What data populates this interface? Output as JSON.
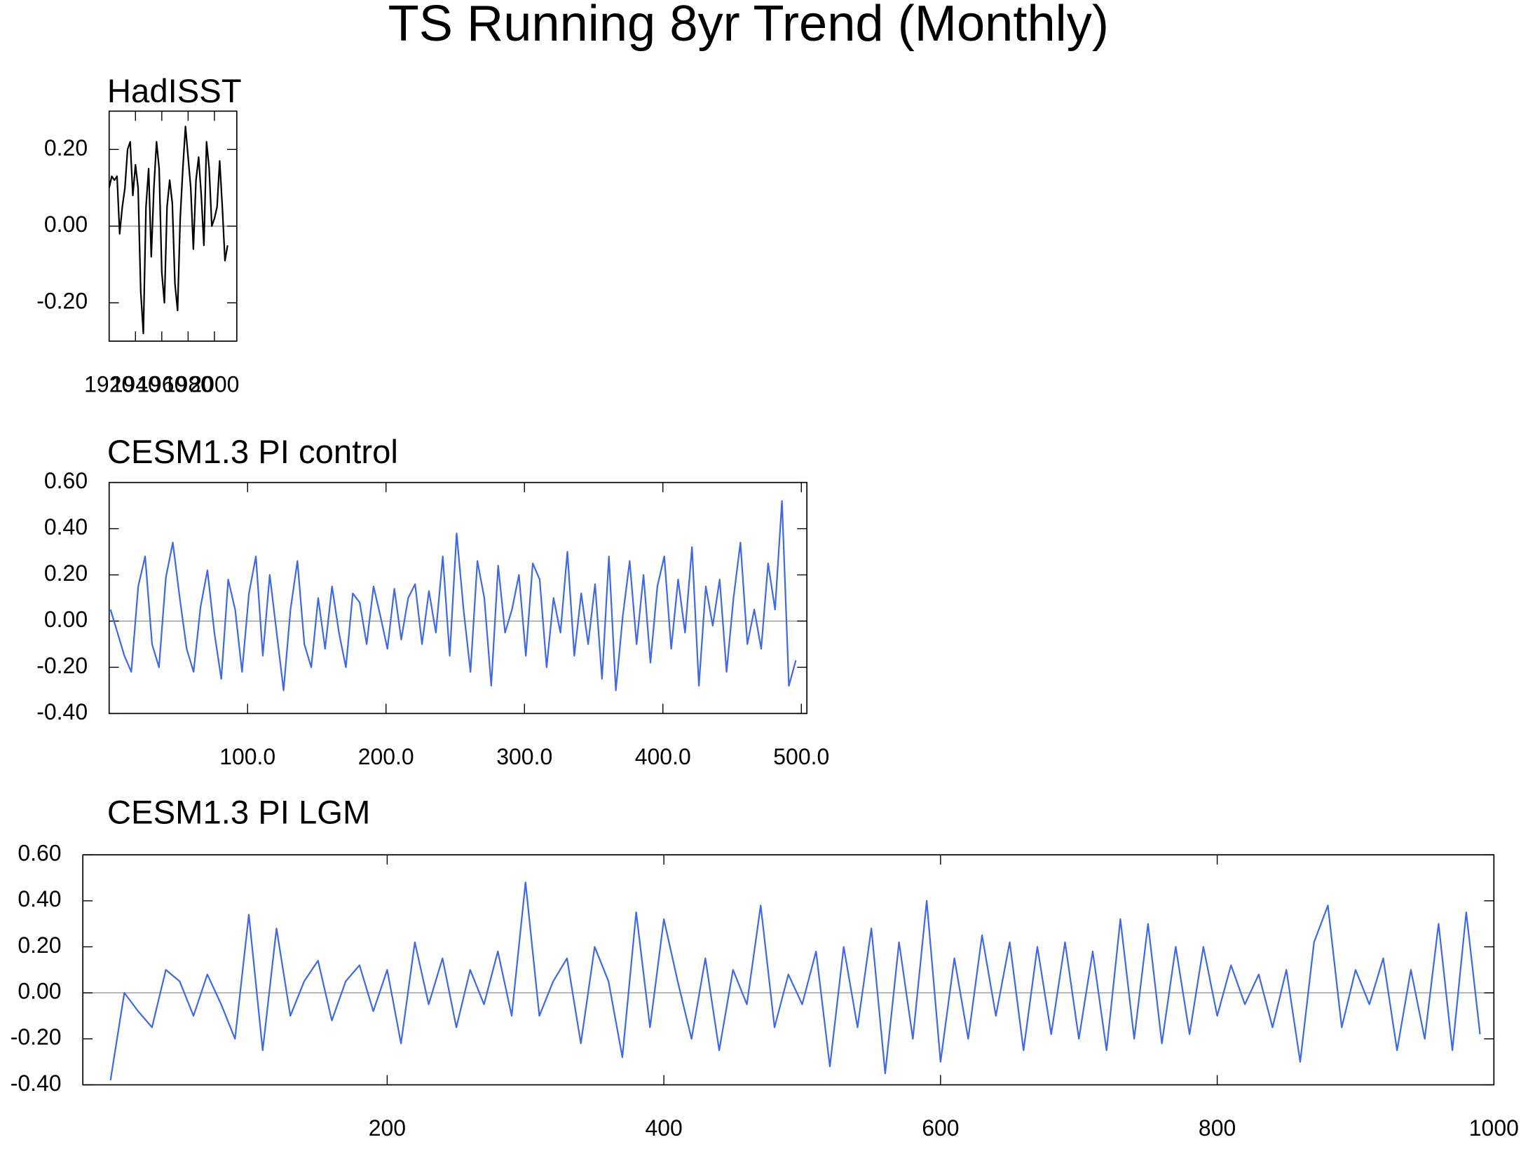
{
  "title": "TS Running 8yr Trend (Monthly)",
  "chart_data": [
    {
      "type": "line",
      "title": "HadISST",
      "color": "#000000",
      "x": [
        1920,
        1922,
        1924,
        1926,
        1928,
        1930,
        1932,
        1934,
        1936,
        1938,
        1940,
        1942,
        1944,
        1946,
        1948,
        1950,
        1952,
        1954,
        1956,
        1958,
        1960,
        1962,
        1964,
        1966,
        1968,
        1970,
        1972,
        1974,
        1976,
        1978,
        1980,
        1982,
        1984,
        1986,
        1988,
        1990,
        1992,
        1994,
        1996,
        1998,
        2000,
        2002,
        2004,
        2006,
        2008,
        2010
      ],
      "values": [
        0.1,
        0.13,
        0.12,
        0.13,
        -0.02,
        0.05,
        0.1,
        0.2,
        0.22,
        0.08,
        0.16,
        0.1,
        -0.17,
        -0.28,
        0.05,
        0.15,
        -0.08,
        0.1,
        0.22,
        0.15,
        -0.12,
        -0.2,
        0.05,
        0.12,
        0.06,
        -0.15,
        -0.22,
        0.02,
        0.15,
        0.26,
        0.18,
        0.1,
        -0.06,
        0.12,
        0.18,
        0.08,
        -0.05,
        0.22,
        0.15,
        0.0,
        0.02,
        0.05,
        0.17,
        0.05,
        -0.09,
        -0.05
      ],
      "xlim": [
        1920,
        2017
      ],
      "ylim": [
        -0.3,
        0.3
      ],
      "xticks": [
        1920,
        1940,
        1960,
        1980,
        2000
      ],
      "yticks": [
        {
          "value": -0.2,
          "label": "-0.20"
        },
        {
          "value": 0,
          "label": "0.00"
        },
        {
          "value": 0.2,
          "label": "0.20"
        }
      ],
      "reference_line": 0
    },
    {
      "type": "line",
      "title": "CESM1.3 PI control",
      "color": "#4169e1",
      "x": [
        1,
        6,
        11,
        16,
        21,
        26,
        31,
        36,
        41,
        46,
        51,
        56,
        61,
        66,
        71,
        76,
        81,
        86,
        91,
        96,
        101,
        106,
        111,
        116,
        121,
        126,
        131,
        136,
        141,
        146,
        151,
        156,
        161,
        166,
        171,
        176,
        181,
        186,
        191,
        196,
        201,
        206,
        211,
        216,
        221,
        226,
        231,
        236,
        241,
        246,
        251,
        256,
        261,
        266,
        271,
        276,
        281,
        286,
        291,
        296,
        301,
        306,
        311,
        316,
        321,
        326,
        331,
        336,
        341,
        346,
        351,
        356,
        361,
        366,
        371,
        376,
        381,
        386,
        391,
        396,
        401,
        406,
        411,
        416,
        421,
        426,
        431,
        436,
        441,
        446,
        451,
        456,
        461,
        466,
        471,
        476,
        481,
        486,
        491,
        496
      ],
      "values": [
        0.05,
        -0.05,
        -0.15,
        -0.22,
        0.15,
        0.28,
        -0.1,
        -0.2,
        0.19,
        0.34,
        0.1,
        -0.12,
        -0.22,
        0.06,
        0.22,
        -0.05,
        -0.25,
        0.18,
        0.05,
        -0.22,
        0.12,
        0.28,
        -0.15,
        0.2,
        -0.05,
        -0.3,
        0.05,
        0.26,
        -0.1,
        -0.2,
        0.1,
        -0.12,
        0.15,
        -0.05,
        -0.2,
        0.12,
        0.08,
        -0.1,
        0.15,
        0.02,
        -0.12,
        0.14,
        -0.08,
        0.1,
        0.16,
        -0.1,
        0.13,
        -0.05,
        0.28,
        -0.15,
        0.38,
        0.05,
        -0.22,
        0.26,
        0.1,
        -0.28,
        0.24,
        -0.05,
        0.05,
        0.2,
        -0.15,
        0.25,
        0.18,
        -0.2,
        0.1,
        -0.05,
        0.3,
        -0.15,
        0.12,
        -0.1,
        0.16,
        -0.25,
        0.28,
        -0.3,
        0.02,
        0.26,
        -0.1,
        0.2,
        -0.18,
        0.15,
        0.28,
        -0.12,
        0.18,
        -0.05,
        0.32,
        -0.28,
        0.15,
        -0.02,
        0.18,
        -0.22,
        0.1,
        0.34,
        -0.1,
        0.05,
        -0.12,
        0.25,
        0.05,
        0.52,
        -0.28,
        -0.17
      ],
      "xlim": [
        0,
        504
      ],
      "ylim": [
        -0.4,
        0.6
      ],
      "xticks": [
        {
          "value": 100,
          "label": "100.0"
        },
        {
          "value": 200,
          "label": "200.0"
        },
        {
          "value": 300,
          "label": "300.0"
        },
        {
          "value": 400,
          "label": "400.0"
        },
        {
          "value": 500,
          "label": "500.0"
        }
      ],
      "yticks": [
        {
          "value": -0.4,
          "label": "-0.40"
        },
        {
          "value": -0.2,
          "label": "-0.20"
        },
        {
          "value": 0,
          "label": "0.00"
        },
        {
          "value": 0.2,
          "label": "0.20"
        },
        {
          "value": 0.4,
          "label": "0.40"
        },
        {
          "value": 0.6,
          "label": "0.60"
        }
      ],
      "reference_line": 0
    },
    {
      "type": "line",
      "title": "CESM1.3 PI LGM",
      "color": "#4169e1",
      "x": [
        0,
        10,
        20,
        30,
        40,
        50,
        60,
        70,
        80,
        90,
        100,
        110,
        120,
        130,
        140,
        150,
        160,
        170,
        180,
        190,
        200,
        210,
        220,
        230,
        240,
        250,
        260,
        270,
        280,
        290,
        300,
        310,
        320,
        330,
        340,
        350,
        360,
        370,
        380,
        390,
        400,
        410,
        420,
        430,
        440,
        450,
        460,
        470,
        480,
        490,
        500,
        510,
        520,
        530,
        540,
        550,
        560,
        570,
        580,
        590,
        600,
        610,
        620,
        630,
        640,
        650,
        660,
        670,
        680,
        690,
        700,
        710,
        720,
        730,
        740,
        750,
        760,
        770,
        780,
        790,
        800,
        810,
        820,
        830,
        840,
        850,
        860,
        870,
        880,
        890,
        900,
        910,
        920,
        930,
        940,
        950,
        960,
        970,
        980,
        990
      ],
      "values": [
        -0.38,
        0.0,
        -0.08,
        -0.15,
        0.1,
        0.05,
        -0.1,
        0.08,
        -0.05,
        -0.2,
        0.34,
        -0.25,
        0.28,
        -0.1,
        0.05,
        0.14,
        -0.12,
        0.05,
        0.12,
        -0.08,
        0.1,
        -0.22,
        0.22,
        -0.05,
        0.15,
        -0.15,
        0.1,
        -0.05,
        0.18,
        -0.1,
        0.48,
        -0.1,
        0.05,
        0.15,
        -0.22,
        0.2,
        0.05,
        -0.28,
        0.35,
        -0.15,
        0.32,
        0.05,
        -0.2,
        0.15,
        -0.25,
        0.1,
        -0.05,
        0.38,
        -0.15,
        0.08,
        -0.05,
        0.18,
        -0.32,
        0.2,
        -0.15,
        0.28,
        -0.35,
        0.22,
        -0.2,
        0.4,
        -0.3,
        0.15,
        -0.2,
        0.25,
        -0.1,
        0.22,
        -0.25,
        0.2,
        -0.18,
        0.22,
        -0.2,
        0.18,
        -0.25,
        0.32,
        -0.2,
        0.3,
        -0.22,
        0.2,
        -0.18,
        0.2,
        -0.1,
        0.12,
        -0.05,
        0.08,
        -0.15,
        0.1,
        -0.3,
        0.22,
        0.38,
        -0.15,
        0.1,
        -0.05,
        0.15,
        -0.25,
        0.1,
        -0.2,
        0.3,
        -0.25,
        0.35,
        -0.18
      ],
      "xlim": [
        -20,
        1000
      ],
      "ylim": [
        -0.4,
        0.6
      ],
      "xticks": [
        200,
        400,
        600,
        800,
        1000
      ],
      "yticks": [
        {
          "value": -0.4,
          "label": "-0.40"
        },
        {
          "value": -0.2,
          "label": "-0.20"
        },
        {
          "value": 0,
          "label": "0.00"
        },
        {
          "value": 0.2,
          "label": "0.20"
        },
        {
          "value": 0.4,
          "label": "0.40"
        },
        {
          "value": 0.6,
          "label": "0.60"
        }
      ],
      "reference_line": 0
    }
  ]
}
